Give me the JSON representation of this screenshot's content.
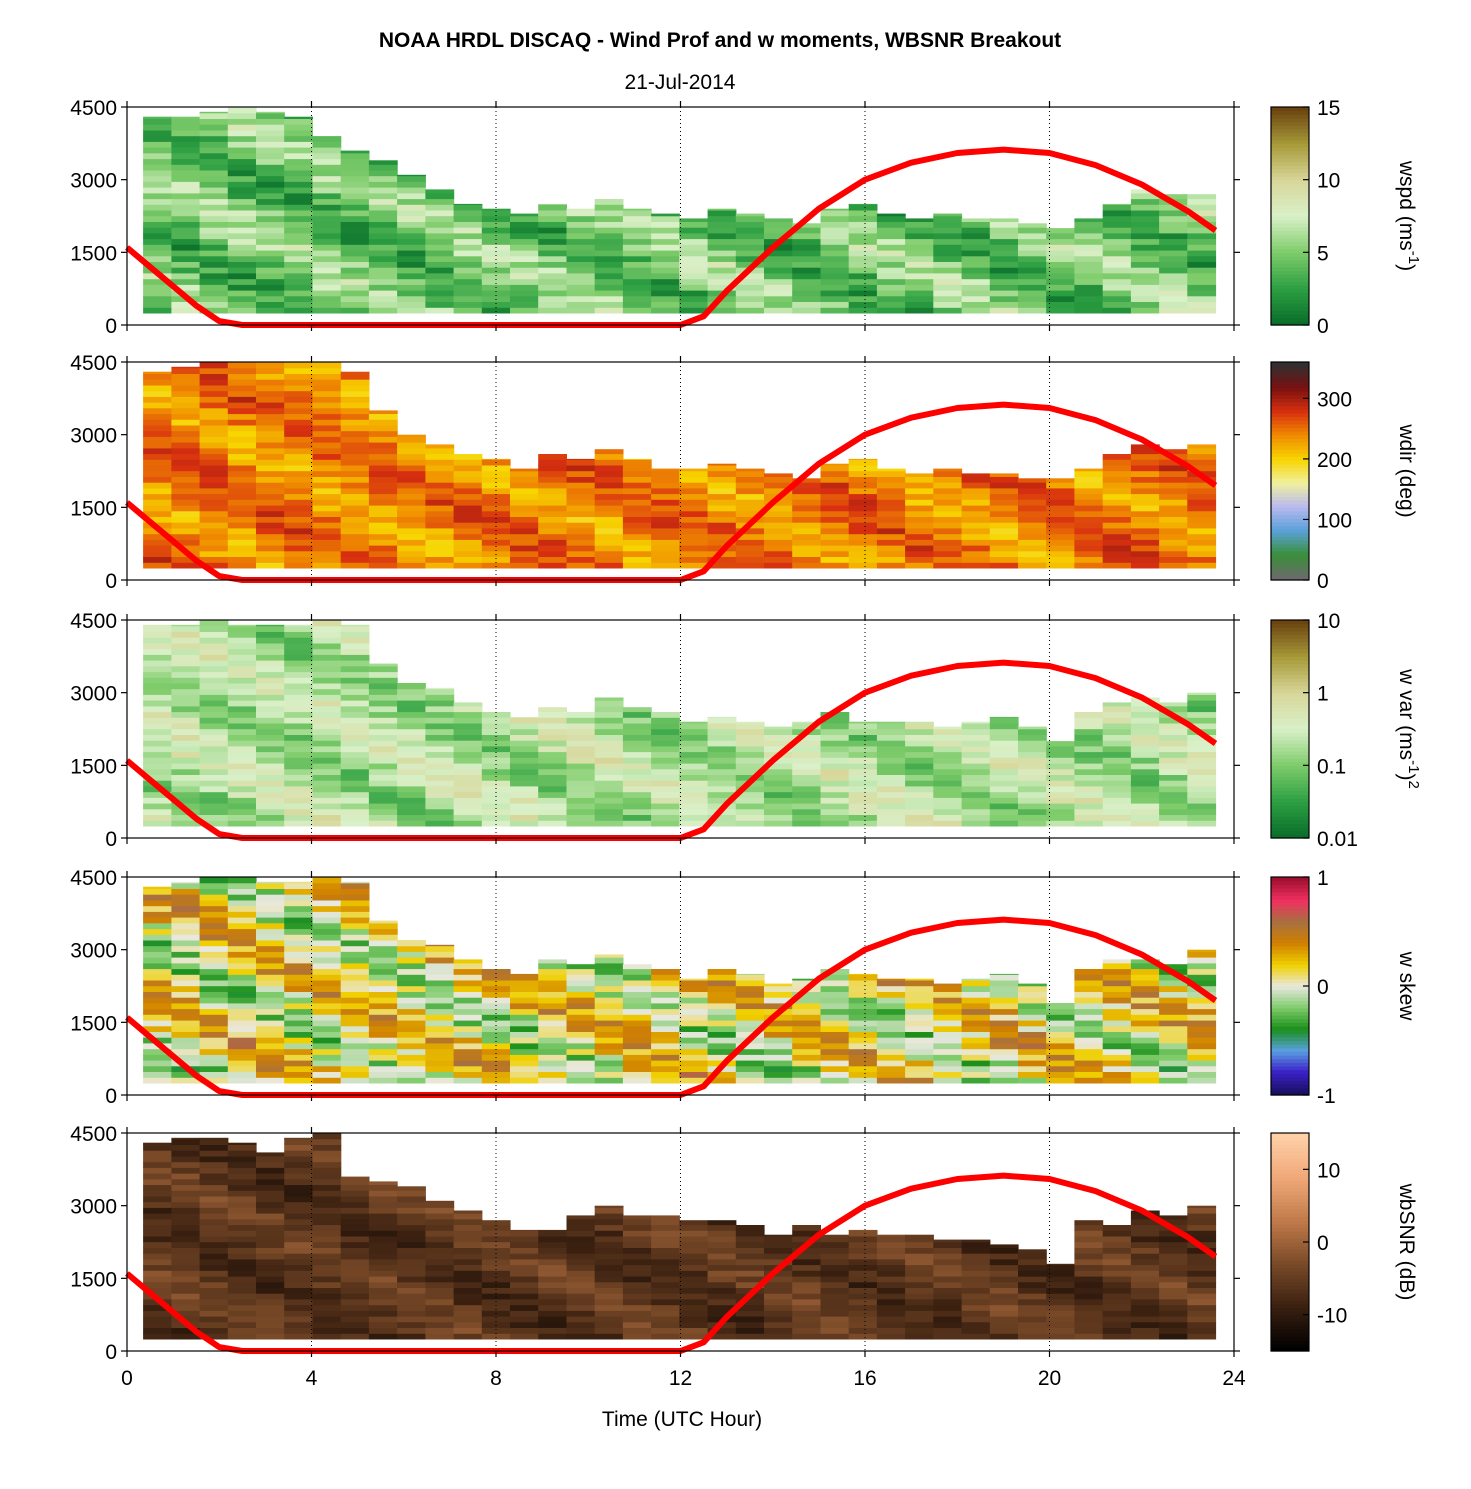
{
  "figure": {
    "title": "NOAA HRDL DISCAQ - Wind Prof and w moments, WBSNR Breakout",
    "subtitle": "21-Jul-2014",
    "xlabel": "Time (UTC Hour)"
  },
  "chart_data": [
    {
      "type": "heatmap",
      "id": "wspd",
      "colorbar_label": "wspd (ms",
      "colorbar_label_sup": "-1",
      "colorbar_label_tail": ")",
      "colorbar_ticks": [
        "0",
        "5",
        "10",
        "15"
      ],
      "colorbar_tick_values": [
        0,
        5,
        10,
        15
      ],
      "clim": [
        0,
        15
      ],
      "colormap": [
        "#0a6e2a",
        "#2ea043",
        "#7fcc6b",
        "#d9f0c8",
        "#d8d79a",
        "#a89b3a",
        "#6b4410"
      ],
      "ylim": [
        0,
        4500
      ],
      "yticks": [
        0,
        1500,
        3000,
        4500
      ],
      "ytick_labels": [
        "0",
        "1500",
        "3000",
        "4500"
      ],
      "xlim": [
        0,
        24
      ],
      "xticks": [
        0,
        4,
        8,
        12,
        16,
        20,
        24
      ],
      "xtick_labels": [
        "0",
        "4",
        "8",
        "12",
        "16",
        "20",
        "24"
      ],
      "data_top_m": [
        4300,
        4300,
        4400,
        4500,
        4400,
        4300,
        3900,
        3600,
        3400,
        3100,
        2800,
        2500,
        2400,
        2300,
        2500,
        2400,
        2600,
        2400,
        2300,
        2200,
        2400,
        2300,
        2200,
        2100,
        2400,
        2500,
        2300,
        2200,
        2300,
        2200,
        2200,
        2100,
        2000,
        2200,
        2500,
        2800,
        2700,
        2700
      ],
      "pattern_base": 4.5,
      "pattern_amp": 3.5
    },
    {
      "type": "heatmap",
      "id": "wdir",
      "colorbar_label": "wdir (deg)",
      "colorbar_ticks": [
        "0",
        "100",
        "200",
        "300"
      ],
      "colorbar_tick_values": [
        0,
        100,
        200,
        300
      ],
      "clim": [
        0,
        360
      ],
      "colormap": [
        "#6b6b6b",
        "#3a8f3a",
        "#5aa0d8",
        "#b8b8f0",
        "#f0f0a0",
        "#f7d500",
        "#f08c00",
        "#d83010",
        "#7a1010",
        "#303030"
      ],
      "ylim": [
        0,
        4500
      ],
      "yticks": [
        0,
        1500,
        3000,
        4500
      ],
      "ytick_labels": [
        "0",
        "1500",
        "3000",
        "4500"
      ],
      "xlim": [
        0,
        24
      ],
      "xticks": [
        0,
        4,
        8,
        12,
        16,
        20,
        24
      ],
      "xtick_labels": [
        "0",
        "4",
        "8",
        "12",
        "16",
        "20",
        "24"
      ],
      "data_top_m": [
        4300,
        4400,
        4500,
        4500,
        4500,
        4500,
        4500,
        4300,
        3500,
        3000,
        2800,
        2600,
        2500,
        2300,
        2600,
        2500,
        2700,
        2500,
        2300,
        2300,
        2400,
        2300,
        2200,
        2100,
        2400,
        2500,
        2300,
        2200,
        2300,
        2200,
        2200,
        2100,
        2100,
        2300,
        2600,
        2800,
        2700,
        2800
      ],
      "pattern_base": 245,
      "pattern_amp": 45
    },
    {
      "type": "heatmap",
      "id": "wvar",
      "colorbar_label": "w var (ms",
      "colorbar_label_sup": "-1",
      "colorbar_label_tail": ")",
      "colorbar_label_sup2": "2",
      "colorbar_ticks": [
        "0.01",
        "0.1",
        "1",
        "10"
      ],
      "colorbar_tick_values": [
        -2,
        -1,
        0,
        1
      ],
      "clim_log10": [
        -2,
        1
      ],
      "colormap": [
        "#0a6e2a",
        "#2ea043",
        "#7fcc6b",
        "#d9f0c8",
        "#d8d79a",
        "#a89b3a",
        "#6b4410"
      ],
      "ylim": [
        0,
        4500
      ],
      "yticks": [
        0,
        1500,
        3000,
        4500
      ],
      "ytick_labels": [
        "0",
        "1500",
        "3000",
        "4500"
      ],
      "xlim": [
        0,
        24
      ],
      "xticks": [
        0,
        4,
        8,
        12,
        16,
        20,
        24
      ],
      "xtick_labels": [
        "0",
        "4",
        "8",
        "12",
        "16",
        "20",
        "24"
      ],
      "data_top_m": [
        4400,
        4400,
        4500,
        4400,
        4400,
        4400,
        4500,
        4400,
        3600,
        3200,
        3100,
        2800,
        2600,
        2500,
        2700,
        2600,
        2900,
        2700,
        2600,
        2400,
        2500,
        2400,
        2300,
        2400,
        2600,
        2400,
        2400,
        2400,
        2300,
        2400,
        2500,
        2300,
        2000,
        2600,
        2800,
        2900,
        2800,
        3000
      ],
      "pattern_base": -0.7,
      "pattern_amp": 0.6
    },
    {
      "type": "heatmap",
      "id": "wskew",
      "colorbar_label": "w skew",
      "colorbar_ticks": [
        "-1",
        "0",
        "1"
      ],
      "colorbar_tick_values": [
        -1,
        0,
        1
      ],
      "clim": [
        -1,
        1
      ],
      "colormap": [
        "#1a1060",
        "#3a20c8",
        "#5aa0e0",
        "#1a8f1a",
        "#7fcc6b",
        "#e8e8e0",
        "#f0d000",
        "#d08000",
        "#a87040",
        "#f03060",
        "#a01030"
      ],
      "ylim": [
        0,
        4500
      ],
      "yticks": [
        0,
        1500,
        3000,
        4500
      ],
      "ytick_labels": [
        "0",
        "1500",
        "3000",
        "4500"
      ],
      "xlim": [
        0,
        24
      ],
      "xticks": [
        0,
        4,
        8,
        12,
        16,
        20,
        24
      ],
      "xtick_labels": [
        "0",
        "4",
        "8",
        "12",
        "16",
        "20",
        "24"
      ],
      "data_top_m": [
        4300,
        4400,
        4500,
        4500,
        4400,
        4400,
        4500,
        4400,
        3600,
        3200,
        3100,
        2800,
        2600,
        2500,
        2800,
        2700,
        2900,
        2700,
        2600,
        2400,
        2600,
        2500,
        2300,
        2400,
        2600,
        2500,
        2400,
        2400,
        2300,
        2400,
        2500,
        2300,
        1900,
        2600,
        2800,
        2800,
        2700,
        3000
      ],
      "pattern_base": 0.1,
      "pattern_amp": 0.45
    },
    {
      "type": "heatmap",
      "id": "wbsnr",
      "colorbar_label": "wbSNR (dB)",
      "colorbar_ticks": [
        "-10",
        "0",
        "10"
      ],
      "colorbar_tick_values": [
        -10,
        0,
        10
      ],
      "clim": [
        -15,
        15
      ],
      "colormap": [
        "#000000",
        "#3a2010",
        "#7a4a28",
        "#c07a4a",
        "#f0a878",
        "#ffd0a8"
      ],
      "ylim": [
        0,
        4500
      ],
      "yticks": [
        0,
        1500,
        3000,
        4500
      ],
      "ytick_labels": [
        "0",
        "1500",
        "3000",
        "4500"
      ],
      "xlim": [
        0,
        24
      ],
      "xticks": [
        0,
        4,
        8,
        12,
        16,
        20,
        24
      ],
      "xtick_labels": [
        "0",
        "4",
        "8",
        "12",
        "16",
        "20",
        "24"
      ],
      "data_top_m": [
        4300,
        4400,
        4400,
        4300,
        4100,
        4400,
        4500,
        3600,
        3500,
        3400,
        3100,
        2900,
        2700,
        2500,
        2500,
        2800,
        3000,
        2800,
        2800,
        2700,
        2700,
        2600,
        2400,
        2600,
        2400,
        2500,
        2400,
        2400,
        2300,
        2300,
        2200,
        2100,
        1800,
        2700,
        2600,
        2900,
        2800,
        3000
      ],
      "pattern_base": -6,
      "pattern_amp": 4
    }
  ],
  "boundary_layer_line": {
    "color": "#ff0000",
    "x_hours": [
      0,
      0.5,
      1,
      1.5,
      2,
      2.5,
      3,
      12,
      12.5,
      13,
      14,
      15,
      16,
      17,
      18,
      19,
      20,
      21,
      22,
      23,
      23.6
    ],
    "height_m": [
      1600,
      1200,
      800,
      400,
      80,
      0,
      0,
      0,
      180,
      700,
      1600,
      2400,
      3000,
      3350,
      3550,
      3620,
      3550,
      3300,
      2900,
      2350,
      1950
    ]
  }
}
